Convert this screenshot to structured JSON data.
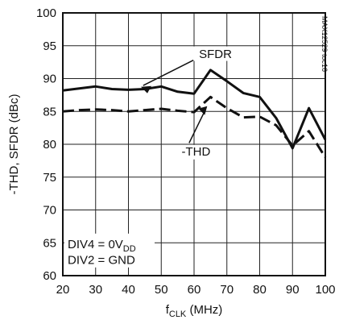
{
  "chart_data": {
    "type": "line",
    "xlabel": "f",
    "xlabel_sub": "CLK",
    "xlabel_unit": " (MHz)",
    "ylabel": "-THD, SFDR (dBc)",
    "xlim": [
      20,
      100
    ],
    "ylim": [
      60,
      100
    ],
    "x_ticks": [
      20,
      30,
      40,
      50,
      60,
      70,
      80,
      90,
      100
    ],
    "y_ticks": [
      60,
      65,
      70,
      75,
      80,
      85,
      90,
      95,
      100
    ],
    "grid": true,
    "series": [
      {
        "name": "SFDR",
        "style": "solid",
        "color": "#111111",
        "x": [
          20,
          25,
          30,
          35,
          40,
          45,
          50,
          55,
          60,
          65,
          70,
          75,
          80,
          85,
          90,
          95,
          100
        ],
        "y": [
          88.2,
          88.5,
          88.8,
          88.4,
          88.3,
          88.4,
          88.8,
          88.0,
          87.7,
          91.3,
          89.6,
          87.8,
          87.2,
          84.0,
          79.4,
          85.5,
          80.7
        ]
      },
      {
        "name": "-THD",
        "style": "dashed",
        "color": "#111111",
        "x": [
          20,
          25,
          30,
          35,
          40,
          45,
          50,
          55,
          60,
          65,
          70,
          75,
          80,
          85,
          90,
          95,
          100
        ],
        "y": [
          85.0,
          85.2,
          85.3,
          85.2,
          85.0,
          85.2,
          85.4,
          85.1,
          84.9,
          87.2,
          85.5,
          84.1,
          84.2,
          82.9,
          79.8,
          82.0,
          78.0
        ]
      }
    ],
    "annotations": [
      {
        "key": "sfdr",
        "text": "SFDR"
      },
      {
        "key": "thd",
        "text": "-THD"
      }
    ],
    "conditions": [
      {
        "main": "DIV4 = 0V",
        "sub": "DD"
      },
      {
        "main": "DIV2 = GND",
        "sub": ""
      }
    ],
    "figure_id": "MAX12529 toc16"
  }
}
